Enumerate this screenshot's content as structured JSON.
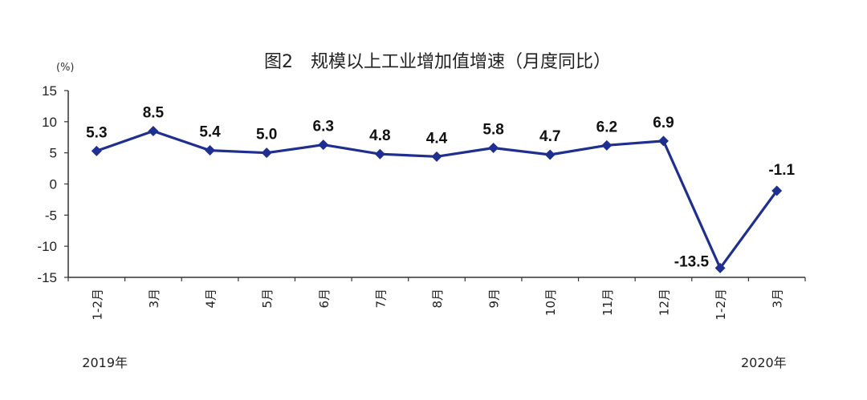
{
  "chart_data": {
    "type": "line",
    "title": "图2　规模以上工业增加值增速（月度同比）",
    "unit_label": "(%)",
    "categories": [
      "1-2月",
      "3月",
      "4月",
      "5月",
      "6月",
      "7月",
      "8月",
      "9月",
      "10月",
      "11月",
      "12月",
      "1-2月",
      "3月"
    ],
    "values": [
      5.3,
      8.5,
      5.4,
      5.0,
      6.3,
      4.8,
      4.4,
      5.8,
      4.7,
      6.2,
      6.9,
      -13.5,
      -1.1
    ],
    "data_labels": [
      "5.3",
      "8.5",
      "5.4",
      "5.0",
      "6.3",
      "4.8",
      "4.4",
      "5.8",
      "4.7",
      "6.2",
      "6.9",
      "-13.5",
      "-1.1"
    ],
    "year_labels": [
      "2019年",
      "2020年"
    ],
    "ylim": [
      -15,
      15
    ],
    "y_ticks": [
      "15",
      "10",
      "5",
      "0",
      "-5",
      "-10",
      "-15"
    ],
    "y_tick_values": [
      15,
      10,
      5,
      0,
      -5,
      -10,
      -15
    ],
    "grid": false,
    "legend": "none",
    "line_color": "#1f2f8f"
  }
}
